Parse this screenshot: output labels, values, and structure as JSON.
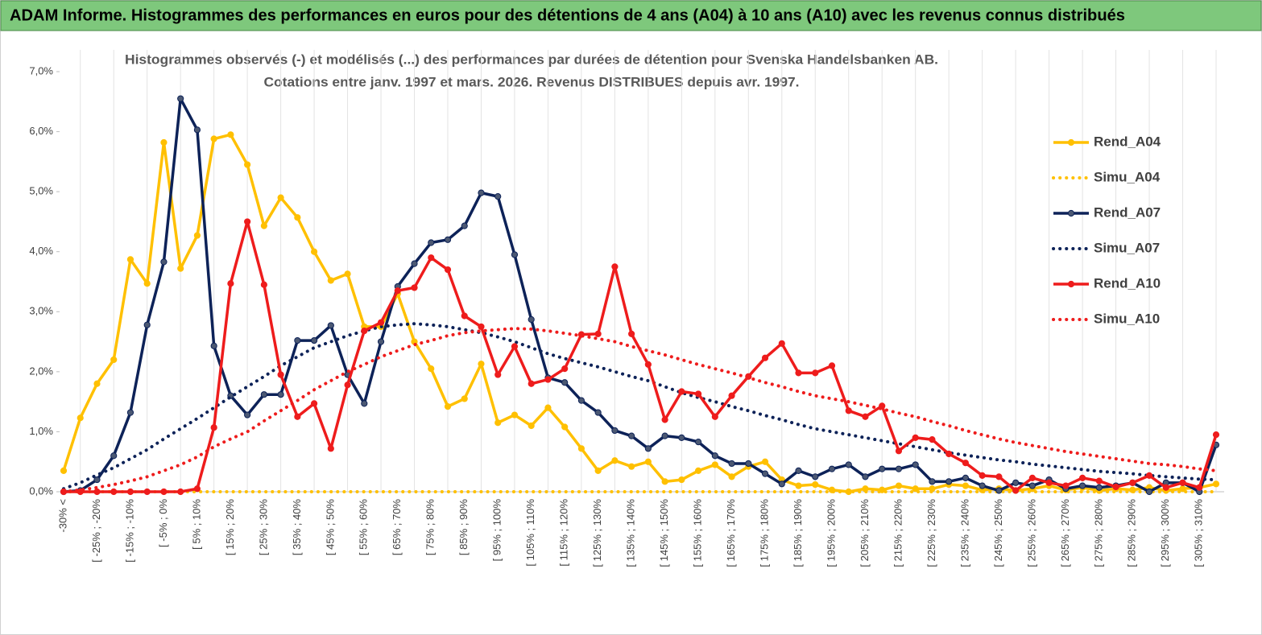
{
  "header": "ADAM Informe. Histogrammes des performances en euros pour des détentions de 4 ans (A04) à 10 ans (A10) avec les revenus connus distribués",
  "chart_data": {
    "type": "line",
    "title": "Histogrammes observés (-) et modélisés (...) des performances par durées de détention pour Svenska Handelsbanken AB.",
    "subtitle": "Cotations entre janv. 1997 et mars. 2026. Revenus DISTRIBUES depuis avr. 1997.",
    "categories": [
      "-30% <",
      null,
      "[ -25% ; -20%",
      null,
      "[ -15% ; -10%",
      null,
      "[ -5% ; 0%",
      null,
      "[ 5% ; 10%",
      null,
      "[ 15% ; 20%",
      null,
      "[ 25% ; 30%",
      null,
      "[ 35% ; 40%",
      null,
      "[ 45% ; 50%",
      null,
      "[ 55% ; 60%",
      null,
      "[ 65% ; 70%",
      null,
      "[ 75% ; 80%",
      null,
      "[ 85% ; 90%",
      null,
      "[ 95% ; 100%",
      null,
      "[ 105% ; 110%",
      null,
      "[ 115% ; 120%",
      null,
      "[ 125% ; 130%",
      null,
      "[ 135% ; 140%",
      null,
      "[ 145% ; 150%",
      null,
      "[ 155% ; 160%",
      null,
      "[ 165% ; 170%",
      null,
      "[ 175% ; 180%",
      null,
      "[ 185% ; 190%",
      null,
      "[ 195% ; 200%",
      null,
      "[ 205% ; 210%",
      null,
      "[ 215% ; 220%",
      null,
      "[ 225% ; 230%",
      null,
      "[ 235% ; 240%",
      null,
      "[ 245% ; 250%",
      null,
      "[ 255% ; 260%",
      null,
      "[ 265% ; 270%",
      null,
      "[ 275% ; 280%",
      null,
      "[ 285% ; 290%",
      null,
      "[ 295% ; 300%",
      null,
      "[ 305% ; 310%",
      null
    ],
    "series": [
      {
        "name": "Rend_A04",
        "color": "#ffc000",
        "style": "solid",
        "marker": true,
        "values": [
          0.35,
          1.23,
          1.8,
          2.2,
          3.87,
          3.47,
          5.82,
          3.72,
          4.27,
          5.88,
          5.95,
          5.45,
          4.43,
          4.9,
          4.57,
          4.0,
          3.52,
          3.63,
          2.75,
          2.75,
          3.3,
          2.5,
          2.05,
          1.42,
          1.55,
          2.13,
          1.15,
          1.28,
          1.1,
          1.4,
          1.08,
          0.72,
          0.35,
          0.52,
          0.42,
          0.5,
          0.17,
          0.2,
          0.35,
          0.45,
          0.25,
          0.42,
          0.5,
          0.2,
          0.1,
          0.12,
          0.03,
          0.0,
          0.05,
          0.03,
          0.1,
          0.05,
          0.05,
          0.12,
          0.1,
          0.03,
          0.05,
          0.02,
          0.05,
          0.1,
          0.03,
          0.07,
          0.02,
          0.05,
          0.03,
          0.07,
          0.02,
          0.05,
          0.07,
          0.13
        ]
      },
      {
        "name": "Simu_A04",
        "color": "#ffc000",
        "style": "dotted",
        "marker": false,
        "values": [
          0,
          0,
          0,
          0,
          0,
          0,
          0,
          0,
          0,
          0,
          0,
          0,
          0,
          0,
          0,
          0,
          0,
          0,
          0,
          0,
          0,
          0,
          0,
          0,
          0,
          0,
          0,
          0,
          0,
          0,
          0,
          0,
          0,
          0,
          0,
          0,
          0,
          0,
          0,
          0,
          0,
          0,
          0,
          0,
          0,
          0,
          0,
          0,
          0,
          0,
          0,
          0,
          0,
          0,
          0,
          0,
          0,
          0,
          0,
          0,
          0,
          0,
          0,
          0,
          0,
          0,
          0,
          0,
          0,
          0
        ]
      },
      {
        "name": "Rend_A07",
        "color": "#0d2258",
        "style": "solid",
        "marker": true,
        "values": [
          0,
          0.02,
          0.2,
          0.6,
          1.32,
          2.78,
          3.83,
          6.55,
          6.03,
          2.43,
          1.6,
          1.28,
          1.62,
          1.62,
          2.52,
          2.52,
          2.77,
          1.95,
          1.47,
          2.5,
          3.42,
          3.8,
          4.15,
          4.2,
          4.43,
          4.98,
          4.92,
          3.95,
          2.87,
          1.9,
          1.82,
          1.52,
          1.32,
          1.02,
          0.93,
          0.72,
          0.93,
          0.9,
          0.83,
          0.6,
          0.47,
          0.47,
          0.3,
          0.13,
          0.35,
          0.25,
          0.38,
          0.45,
          0.25,
          0.38,
          0.38,
          0.45,
          0.17,
          0.17,
          0.23,
          0.1,
          0.02,
          0.15,
          0.1,
          0.2,
          0.05,
          0.1,
          0.07,
          0.1,
          0.15,
          0.0,
          0.15,
          0.15,
          0.0,
          0.78
        ]
      },
      {
        "name": "Simu_A07",
        "color": "#0d2258",
        "style": "dotted",
        "marker": false,
        "values": [
          0.05,
          0.15,
          0.28,
          0.4,
          0.55,
          0.7,
          0.88,
          1.05,
          1.22,
          1.4,
          1.58,
          1.75,
          1.92,
          2.1,
          2.25,
          2.4,
          2.5,
          2.6,
          2.68,
          2.75,
          2.78,
          2.8,
          2.78,
          2.75,
          2.7,
          2.65,
          2.58,
          2.5,
          2.4,
          2.3,
          2.22,
          2.15,
          2.08,
          2.0,
          1.92,
          1.85,
          1.75,
          1.65,
          1.57,
          1.5,
          1.42,
          1.35,
          1.27,
          1.2,
          1.12,
          1.05,
          1.0,
          0.95,
          0.9,
          0.85,
          0.8,
          0.75,
          0.7,
          0.65,
          0.61,
          0.57,
          0.53,
          0.5,
          0.46,
          0.43,
          0.4,
          0.37,
          0.34,
          0.32,
          0.3,
          0.27,
          0.25,
          0.23,
          0.21,
          0.2
        ]
      },
      {
        "name": "Rend_A10",
        "color": "#ee1c1c",
        "style": "solid",
        "marker": true,
        "values": [
          0,
          0,
          0,
          0,
          0,
          0,
          0,
          0,
          0.05,
          1.07,
          3.47,
          4.5,
          3.45,
          1.95,
          1.25,
          1.47,
          0.72,
          1.78,
          2.68,
          2.82,
          3.35,
          3.4,
          3.9,
          3.7,
          2.93,
          2.75,
          1.95,
          2.42,
          1.8,
          1.87,
          2.05,
          2.62,
          2.63,
          3.75,
          2.63,
          2.12,
          1.2,
          1.67,
          1.63,
          1.25,
          1.6,
          1.92,
          2.23,
          2.47,
          1.98,
          1.98,
          2.1,
          1.35,
          1.25,
          1.43,
          0.68,
          0.9,
          0.87,
          0.63,
          0.48,
          0.27,
          0.25,
          0.02,
          0.23,
          0.15,
          0.1,
          0.23,
          0.18,
          0.08,
          0.15,
          0.27,
          0.07,
          0.15,
          0.07,
          0.95
        ]
      },
      {
        "name": "Simu_A10",
        "color": "#ee1c1c",
        "style": "dotted",
        "marker": false,
        "values": [
          0,
          0.03,
          0.07,
          0.12,
          0.18,
          0.25,
          0.35,
          0.45,
          0.58,
          0.75,
          0.88,
          1.0,
          1.18,
          1.35,
          1.52,
          1.7,
          1.85,
          2.0,
          2.12,
          2.25,
          2.35,
          2.45,
          2.52,
          2.6,
          2.65,
          2.68,
          2.7,
          2.72,
          2.71,
          2.68,
          2.64,
          2.6,
          2.55,
          2.5,
          2.42,
          2.35,
          2.28,
          2.2,
          2.12,
          2.05,
          1.98,
          1.9,
          1.82,
          1.75,
          1.67,
          1.6,
          1.55,
          1.5,
          1.44,
          1.38,
          1.31,
          1.25,
          1.17,
          1.1,
          1.02,
          0.95,
          0.88,
          0.82,
          0.77,
          0.72,
          0.67,
          0.63,
          0.59,
          0.55,
          0.51,
          0.47,
          0.45,
          0.42,
          0.38,
          0.35
        ]
      }
    ],
    "ylim": [
      0,
      7
    ],
    "yticks": [
      {
        "value": 0,
        "label": "0,0%"
      },
      {
        "value": 1,
        "label": "1,0%"
      },
      {
        "value": 2,
        "label": "2,0%"
      },
      {
        "value": 3,
        "label": "3,0%"
      },
      {
        "value": 4,
        "label": "4,0%"
      },
      {
        "value": 5,
        "label": "5,0%"
      },
      {
        "value": 6,
        "label": "6,0%"
      },
      {
        "value": 7,
        "label": "7,0%"
      }
    ],
    "legend": "right"
  }
}
